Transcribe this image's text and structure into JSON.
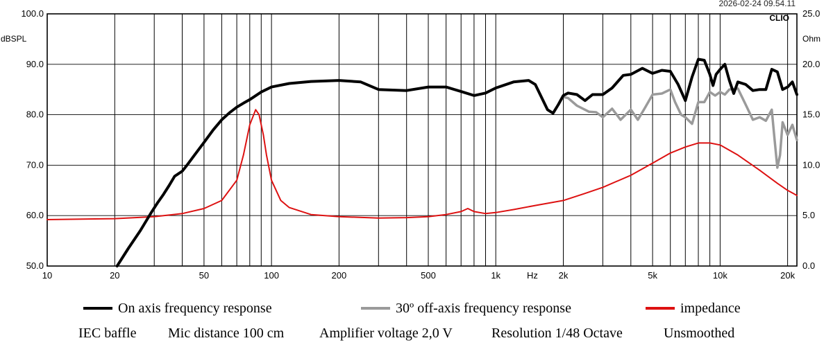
{
  "timestamp": "2026-02-24 09.54.11",
  "brand": "CLIO",
  "chart_data": {
    "type": "line",
    "xscale": "log",
    "xlim": [
      10,
      22000
    ],
    "ylim": [
      50,
      100
    ],
    "ylim_right": [
      0,
      25
    ],
    "ylabel": "dBSPL",
    "ylabel_right": "Ohm",
    "xunit_label": "Hz",
    "grid": true,
    "x_ticks": [
      {
        "value": 10,
        "label": "10"
      },
      {
        "value": 20,
        "label": "20"
      },
      {
        "value": 50,
        "label": "50"
      },
      {
        "value": 100,
        "label": "100"
      },
      {
        "value": 200,
        "label": "200"
      },
      {
        "value": 500,
        "label": "500"
      },
      {
        "value": 1000,
        "label": "1k"
      },
      {
        "value": 2000,
        "label": "2k"
      },
      {
        "value": 5000,
        "label": "5k"
      },
      {
        "value": 10000,
        "label": "10k"
      },
      {
        "value": 20000,
        "label": "20k"
      }
    ],
    "y_ticks": [
      {
        "value": 100,
        "label": "100.0"
      },
      {
        "value": 90,
        "label": "90.0"
      },
      {
        "value": 80,
        "label": "80.0"
      },
      {
        "value": 70,
        "label": "70.0"
      },
      {
        "value": 60,
        "label": "60.0"
      },
      {
        "value": 50,
        "label": "50.0"
      }
    ],
    "y_ticks_right": [
      {
        "value": 25,
        "label": "25.0"
      },
      {
        "value": 20,
        "label": "20.0"
      },
      {
        "value": 15,
        "label": "15.0"
      },
      {
        "value": 10,
        "label": "10.0"
      },
      {
        "value": 5,
        "label": "5.0"
      },
      {
        "value": 0,
        "label": "0.0"
      }
    ],
    "series": [
      {
        "name": "On axis frequency response",
        "color": "#000000",
        "axis": "left",
        "x": [
          20.5,
          23,
          26,
          29,
          31,
          33,
          35,
          37,
          40,
          42,
          45,
          50,
          55,
          60,
          65,
          70,
          75,
          80,
          90,
          100,
          120,
          150,
          200,
          250,
          300,
          400,
          500,
          600,
          700,
          800,
          900,
          1000,
          1200,
          1400,
          1500,
          1700,
          1800,
          1900,
          2000,
          2100,
          2300,
          2500,
          2700,
          3000,
          3300,
          3700,
          4000,
          4500,
          5000,
          5500,
          6000,
          6500,
          7000,
          7500,
          8000,
          8500,
          9000,
          9300,
          9600,
          10000,
          10500,
          11000,
          11500,
          12000,
          13000,
          14000,
          15000,
          16000,
          17000,
          18000,
          19000,
          20000,
          21000,
          22000
        ],
        "values": [
          50.0,
          53.5,
          57.0,
          60.5,
          62.5,
          64.2,
          66.0,
          67.8,
          68.8,
          70.0,
          71.8,
          74.5,
          77.0,
          79.0,
          80.4,
          81.5,
          82.3,
          83.0,
          84.5,
          85.5,
          86.2,
          86.6,
          86.8,
          86.5,
          85.0,
          84.8,
          85.5,
          85.5,
          84.6,
          83.8,
          84.3,
          85.3,
          86.5,
          86.8,
          86.0,
          81.0,
          80.3,
          82.0,
          83.8,
          84.3,
          84.0,
          82.8,
          84.0,
          84.0,
          85.3,
          87.8,
          88.0,
          89.2,
          88.2,
          88.8,
          88.6,
          86.0,
          82.8,
          87.5,
          91.0,
          90.8,
          88.0,
          85.8,
          88.0,
          89.0,
          90.0,
          86.8,
          84.2,
          86.5,
          86.0,
          84.8,
          85.0,
          85.0,
          89.0,
          88.5,
          85.0,
          85.5,
          86.5,
          84.0
        ]
      },
      {
        "name": "30º off-axis frequency response",
        "color": "#9a9a9a",
        "axis": "left",
        "x": [
          2000,
          2100,
          2300,
          2600,
          2800,
          3000,
          3300,
          3600,
          4000,
          4300,
          4600,
          5000,
          5500,
          6000,
          6300,
          6700,
          7000,
          7500,
          8000,
          8500,
          9000,
          9500,
          10000,
          10500,
          11000,
          12000,
          13000,
          14000,
          15000,
          16000,
          17000,
          17500,
          18000,
          18500,
          19000,
          20000,
          21000,
          22000
        ],
        "values": [
          83.5,
          83.3,
          81.8,
          80.6,
          80.5,
          79.5,
          81.2,
          79.0,
          81.0,
          79.0,
          81.2,
          84.0,
          84.2,
          85.0,
          82.5,
          80.0,
          79.5,
          78.2,
          82.5,
          82.5,
          84.5,
          83.8,
          84.5,
          84.0,
          85.0,
          85.2,
          82.0,
          79.0,
          79.5,
          78.8,
          81.0,
          75.0,
          69.5,
          72.0,
          78.5,
          76.0,
          78.0,
          75.0
        ]
      },
      {
        "name": "impedance",
        "color": "#dd1111",
        "axis": "right",
        "x": [
          10,
          20,
          30,
          40,
          50,
          60,
          70,
          75,
          80,
          85,
          88,
          92,
          95,
          100,
          110,
          120,
          150,
          200,
          300,
          400,
          500,
          600,
          700,
          750,
          800,
          900,
          1000,
          1200,
          1500,
          2000,
          2500,
          3000,
          4000,
          5000,
          6000,
          7000,
          8000,
          8500,
          9000,
          10000,
          12000,
          15000,
          18000,
          20000,
          22000
        ],
        "values": [
          4.6,
          4.7,
          4.9,
          5.2,
          5.7,
          6.5,
          8.5,
          11.0,
          14.0,
          15.5,
          15.0,
          13.0,
          11.0,
          8.5,
          6.5,
          5.8,
          5.1,
          4.9,
          4.75,
          4.8,
          4.9,
          5.1,
          5.4,
          5.7,
          5.4,
          5.2,
          5.3,
          5.6,
          6.0,
          6.5,
          7.2,
          7.8,
          9.0,
          10.2,
          11.2,
          11.8,
          12.2,
          12.2,
          12.2,
          12.0,
          11.0,
          9.5,
          8.2,
          7.5,
          7.0
        ]
      }
    ]
  },
  "legend": {
    "items": [
      {
        "label": "On axis frequency response",
        "color": "#000000"
      },
      {
        "label": "30º off-axis frequency response",
        "color": "#9a9a9a"
      },
      {
        "label": "impedance",
        "color": "#dd1111"
      }
    ]
  },
  "footer": {
    "items": [
      "IEC baffle",
      "Mic distance 100 cm",
      "Amplifier voltage 2,0 V",
      "Resolution 1/48 Octave",
      "Unsmoothed"
    ]
  }
}
